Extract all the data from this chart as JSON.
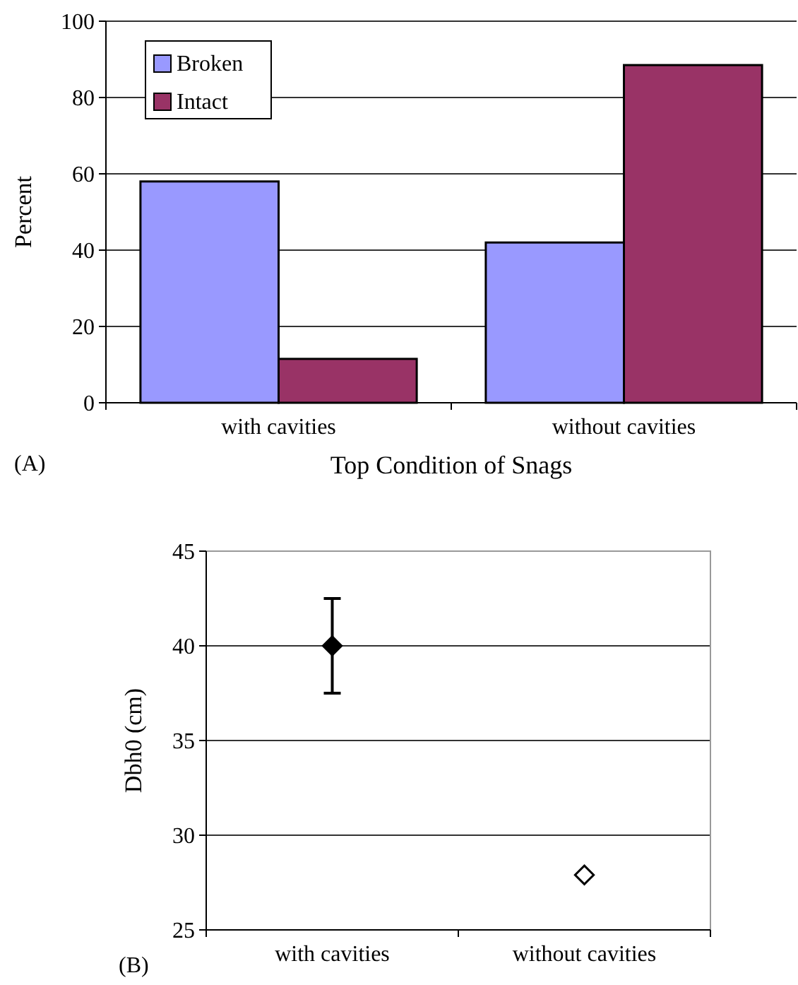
{
  "chart_data": [
    {
      "type": "bar",
      "categories": [
        "with cavities",
        "without cavities"
      ],
      "xlabel": "Top Condition of Snags",
      "ylabel": "Percent",
      "series": [
        {
          "name": "Broken",
          "color": "#9999ff",
          "values": [
            58,
            42
          ]
        },
        {
          "name": "Intact",
          "color": "#993366",
          "values": [
            11.5,
            88.5
          ]
        }
      ],
      "ylim": [
        0,
        100
      ],
      "yticks": [
        0,
        20,
        40,
        60,
        80,
        100
      ],
      "grid": "y",
      "legend": "top left",
      "annotations": [
        "(A)"
      ]
    },
    {
      "type": "scatter",
      "categories": [
        "with cavities",
        "without cavities"
      ],
      "ylabel": "Dbh0 (cm)",
      "values": [
        40,
        27.9
      ],
      "errors": [
        2.5,
        null
      ],
      "colors": [
        "#000000",
        "#ffffff"
      ],
      "marker": "diamond",
      "ylim": [
        25,
        45
      ],
      "yticks": [
        25,
        30,
        35,
        40,
        45
      ],
      "grid": "y",
      "annotations": [
        "(B)"
      ]
    }
  ]
}
